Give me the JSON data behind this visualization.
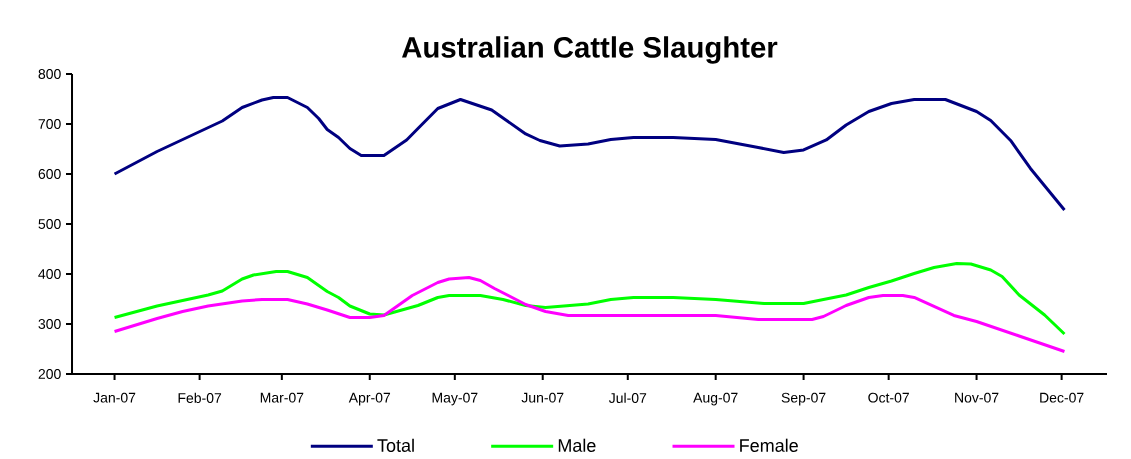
{
  "chart_data": {
    "type": "line",
    "title": "Australian Cattle Slaughter",
    "xlim": [
      "2007-01-01",
      "2008-01-01"
    ],
    "xticks": [
      {
        "value": "2007-01-16",
        "label": "Jan-07"
      },
      {
        "value": "2007-02-15",
        "label": "Feb-07"
      },
      {
        "value": "2007-03-16",
        "label": "Mar-07"
      },
      {
        "value": "2007-04-16",
        "label": "Apr-07"
      },
      {
        "value": "2007-05-16",
        "label": "May-07"
      },
      {
        "value": "2007-06-16",
        "label": "Jun-07"
      },
      {
        "value": "2007-07-16",
        "label": "Jul-07"
      },
      {
        "value": "2007-08-16",
        "label": "Aug-07"
      },
      {
        "value": "2007-09-16",
        "label": "Sep-07"
      },
      {
        "value": "2007-10-16",
        "label": "Oct-07"
      },
      {
        "value": "2007-11-16",
        "label": "Nov-07"
      },
      {
        "value": "2007-12-16",
        "label": "Dec-07"
      }
    ],
    "ylim": [
      200,
      800
    ],
    "yticks": [
      200,
      300,
      400,
      500,
      600,
      700,
      800
    ],
    "legend": "bottom",
    "series": [
      {
        "name": "Total",
        "color": "#000080",
        "x": [
          "2007-01-16",
          "2007-01-31",
          "2007-02-23",
          "2007-03-02",
          "2007-03-09",
          "2007-03-13",
          "2007-03-18",
          "2007-03-25",
          "2007-03-29",
          "2007-04-01",
          "2007-04-05",
          "2007-04-09",
          "2007-04-13",
          "2007-04-21",
          "2007-04-29",
          "2007-05-03",
          "2007-05-10",
          "2007-05-18",
          "2007-05-29",
          "2007-06-03",
          "2007-06-10",
          "2007-06-15",
          "2007-06-22",
          "2007-07-02",
          "2007-07-10",
          "2007-07-18",
          "2007-08-01",
          "2007-08-16",
          "2007-08-31",
          "2007-09-09",
          "2007-09-16",
          "2007-09-24",
          "2007-10-01",
          "2007-10-09",
          "2007-10-17",
          "2007-10-25",
          "2007-11-05",
          "2007-11-16",
          "2007-11-21",
          "2007-11-28",
          "2007-12-05",
          "2007-12-17"
        ],
        "values": [
          600,
          645,
          706,
          733,
          748,
          753,
          753,
          733,
          711,
          689,
          673,
          651,
          637,
          637,
          668,
          691,
          731,
          749,
          728,
          708,
          680,
          667,
          656,
          660,
          669,
          673,
          673,
          669,
          653,
          643,
          648,
          668,
          698,
          725,
          741,
          749,
          749,
          725,
          707,
          667,
          611,
          528
        ]
      },
      {
        "name": "Male",
        "color": "#00ff00",
        "x": [
          "2007-01-16",
          "2007-01-31",
          "2007-02-18",
          "2007-02-23",
          "2007-03-02",
          "2007-03-06",
          "2007-03-14",
          "2007-03-18",
          "2007-03-25",
          "2007-04-01",
          "2007-04-05",
          "2007-04-09",
          "2007-04-16",
          "2007-04-21",
          "2007-05-03",
          "2007-05-10",
          "2007-05-14",
          "2007-05-25",
          "2007-06-02",
          "2007-06-10",
          "2007-06-17",
          "2007-07-02",
          "2007-07-10",
          "2007-07-18",
          "2007-08-01",
          "2007-08-16",
          "2007-09-02",
          "2007-09-16",
          "2007-09-23",
          "2007-10-01",
          "2007-10-09",
          "2007-10-17",
          "2007-10-25",
          "2007-11-01",
          "2007-11-09",
          "2007-11-14",
          "2007-11-21",
          "2007-11-25",
          "2007-12-01",
          "2007-12-10",
          "2007-12-17"
        ],
        "values": [
          313,
          336,
          358,
          366,
          390,
          398,
          405,
          405,
          393,
          365,
          353,
          336,
          320,
          318,
          337,
          353,
          357,
          357,
          349,
          337,
          333,
          340,
          349,
          353,
          353,
          349,
          341,
          341,
          349,
          358,
          373,
          386,
          401,
          413,
          421,
          420,
          408,
          395,
          358,
          318,
          280
        ]
      },
      {
        "name": "Female",
        "color": "#ff00ff",
        "x": [
          "2007-01-16",
          "2007-01-31",
          "2007-02-09",
          "2007-02-18",
          "2007-03-02",
          "2007-03-09",
          "2007-03-18",
          "2007-03-25",
          "2007-04-01",
          "2007-04-09",
          "2007-04-16",
          "2007-04-21",
          "2007-05-01",
          "2007-05-10",
          "2007-05-14",
          "2007-05-21",
          "2007-05-25",
          "2007-05-30",
          "2007-06-10",
          "2007-06-17",
          "2007-06-25",
          "2007-08-16",
          "2007-08-31",
          "2007-09-19",
          "2007-09-23",
          "2007-10-01",
          "2007-10-09",
          "2007-10-14",
          "2007-10-21",
          "2007-10-25",
          "2007-11-01",
          "2007-11-08",
          "2007-11-16",
          "2007-12-01",
          "2007-12-17"
        ],
        "values": [
          285,
          311,
          325,
          336,
          346,
          349,
          349,
          340,
          328,
          313,
          313,
          317,
          357,
          383,
          390,
          393,
          387,
          371,
          339,
          325,
          317,
          317,
          309,
          309,
          315,
          337,
          353,
          357,
          357,
          353,
          335,
          317,
          305,
          276,
          245
        ]
      }
    ]
  }
}
